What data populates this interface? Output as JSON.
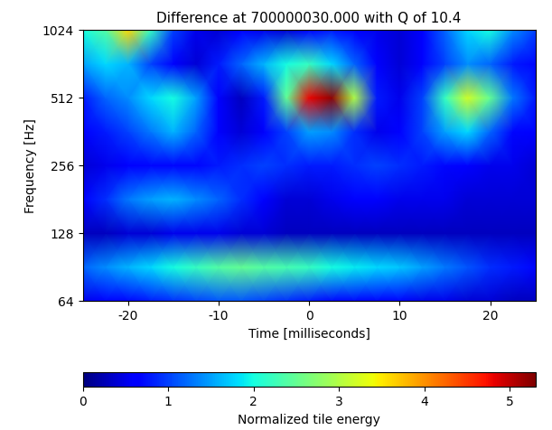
{
  "chart_data": {
    "type": "heatmap",
    "title": "Difference at 700000030.000 with Q of 10.4",
    "x_label": "Time [milliseconds]",
    "y_label": "Frequency [Hz]",
    "x": [
      -25,
      -22.5,
      -20,
      -17.5,
      -15,
      -12.5,
      -10,
      -7.5,
      -5,
      -2.5,
      0,
      2.5,
      5,
      7.5,
      10,
      12.5,
      15,
      17.5,
      20,
      22.5,
      25
    ],
    "y": [
      64,
      90.5,
      128,
      181,
      256,
      362,
      512,
      724,
      1024
    ],
    "cells": [
      [
        0.5,
        0.6,
        0.7,
        0.8,
        0.9,
        1.0,
        1.1,
        1.1,
        1.0,
        0.9,
        0.8,
        0.7,
        0.7,
        0.6,
        0.6,
        0.5,
        0.5,
        0.4,
        0.4,
        0.3,
        0.3
      ],
      [
        1.2,
        1.4,
        1.6,
        1.8,
        2.0,
        2.2,
        2.4,
        2.5,
        2.4,
        2.3,
        2.2,
        2.0,
        1.9,
        1.8,
        1.7,
        1.5,
        1.3,
        1.1,
        0.9,
        0.8,
        0.7
      ],
      [
        0.3,
        0.3,
        0.4,
        0.4,
        0.5,
        0.5,
        0.5,
        0.4,
        0.4,
        0.3,
        0.3,
        0.3,
        0.3,
        0.3,
        0.3,
        0.3,
        0.3,
        0.3,
        0.3,
        0.3,
        0.3
      ],
      [
        0.6,
        0.9,
        1.3,
        1.5,
        1.6,
        1.4,
        1.2,
        0.9,
        0.6,
        0.4,
        0.4,
        0.5,
        0.6,
        0.6,
        0.5,
        0.5,
        0.5,
        0.4,
        0.4,
        0.4,
        0.4
      ],
      [
        0.4,
        0.5,
        0.6,
        0.7,
        0.7,
        0.7,
        0.8,
        0.9,
        1.0,
        0.9,
        0.8,
        0.8,
        0.9,
        1.0,
        0.9,
        0.8,
        0.7,
        0.6,
        0.5,
        0.5,
        0.4
      ],
      [
        0.6,
        0.8,
        1.0,
        1.3,
        1.6,
        1.2,
        0.6,
        0.4,
        0.6,
        1.0,
        1.5,
        1.4,
        0.9,
        0.5,
        0.6,
        1.0,
        1.5,
        1.8,
        1.2,
        0.7,
        0.6
      ],
      [
        0.8,
        1.2,
        1.4,
        1.8,
        2.0,
        1.5,
        0.6,
        0.3,
        0.8,
        2.5,
        4.8,
        5.2,
        3.0,
        0.8,
        0.5,
        1.0,
        2.2,
        3.2,
        2.5,
        1.3,
        0.8
      ],
      [
        1.5,
        1.8,
        1.6,
        1.0,
        0.6,
        0.4,
        0.8,
        1.2,
        1.6,
        2.0,
        2.2,
        1.8,
        1.2,
        0.6,
        0.4,
        0.6,
        1.0,
        1.4,
        1.2,
        0.8,
        0.7
      ],
      [
        2.0,
        2.4,
        3.6,
        2.2,
        1.0,
        0.5,
        0.4,
        0.6,
        0.5,
        0.4,
        0.6,
        0.8,
        0.6,
        0.5,
        0.4,
        0.6,
        1.2,
        1.8,
        2.0,
        1.4,
        1.0
      ]
    ],
    "xlim": [
      -25,
      25
    ],
    "xticks": [
      -20,
      -10,
      0,
      10,
      20
    ],
    "ylim": [
      64,
      1024
    ],
    "yticks": [
      64,
      128,
      256,
      512,
      1024
    ],
    "log": "y",
    "colorbar": {
      "label": "Normalized tile energy",
      "range": [
        0,
        5.3
      ],
      "ticks": [
        0,
        1,
        2,
        3,
        4,
        5
      ]
    }
  }
}
